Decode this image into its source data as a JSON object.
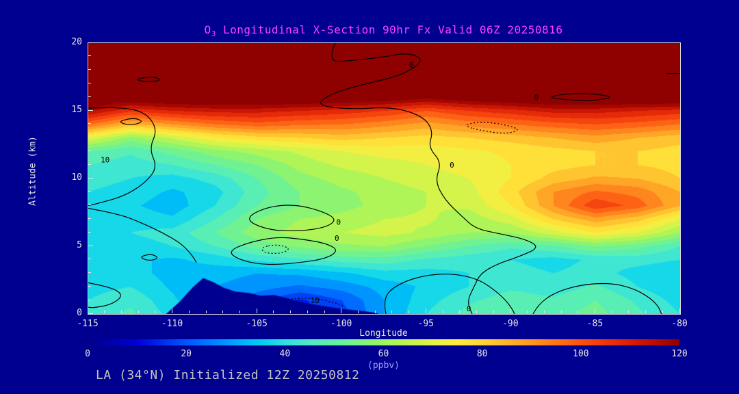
{
  "title": {
    "prefix": "O",
    "sub": "3",
    "rest": " Longitudinal X-Section 90hr  Fx Valid 06Z 20250816"
  },
  "axes": {
    "xlabel": "Longitude",
    "ylabel": "Altitude (km)",
    "x_ticks": [
      -115,
      -110,
      -105,
      -100,
      -95,
      -90,
      -85,
      -80
    ],
    "y_ticks": [
      0,
      5,
      10,
      15,
      20
    ],
    "x_range": [
      -115,
      -80
    ],
    "y_range": [
      0,
      20
    ]
  },
  "colorbar": {
    "label": "(ppbv)",
    "ticks": [
      0,
      20,
      40,
      60,
      80,
      100,
      120
    ],
    "min": 0,
    "max": 120
  },
  "footer": {
    "text": "LA (34°N) Initialized 12Z 20250812"
  },
  "colors": {
    "background": "#000090",
    "title": "#FF3FFF",
    "axis_text": "#E6E6E6",
    "footer_text": "#C4C4C4",
    "colorbar_label": "#9F9FFF",
    "contour": "#000000"
  },
  "chart_data": {
    "type": "heatmap",
    "units": "ppbv",
    "title": "O3 Longitudinal X-Section 90hr Fx Valid 06Z 20250816",
    "xlabel": "Longitude",
    "ylabel": "Altitude (km)",
    "x": [
      -115,
      -112.5,
      -110,
      -107.5,
      -105,
      -102.5,
      -100,
      -97.5,
      -95,
      -92.5,
      -90,
      -87.5,
      -85,
      -82.5,
      -80
    ],
    "y": [
      0,
      1,
      2,
      3,
      4,
      5,
      6,
      7,
      8,
      9,
      10,
      11,
      12,
      13,
      14,
      15,
      16,
      17,
      18,
      19,
      20
    ],
    "band_step": 5,
    "values": [
      [
        42,
        46,
        38,
        30,
        25,
        12,
        18,
        30,
        40,
        47,
        50,
        48,
        52,
        46,
        40
      ],
      [
        40,
        44,
        36,
        28,
        22,
        14,
        20,
        30,
        38,
        44,
        48,
        46,
        50,
        44,
        38
      ],
      [
        38,
        40,
        34,
        30,
        27,
        24,
        27,
        32,
        36,
        40,
        44,
        42,
        46,
        40,
        36
      ],
      [
        36,
        37,
        33,
        32,
        30,
        31,
        34,
        38,
        38,
        40,
        42,
        40,
        42,
        38,
        35
      ],
      [
        35,
        36,
        34,
        37,
        41,
        44,
        47,
        48,
        44,
        42,
        40,
        38,
        41,
        42,
        40
      ],
      [
        36,
        38,
        40,
        45,
        52,
        56,
        59,
        60,
        55,
        50,
        46,
        49,
        55,
        52,
        45
      ],
      [
        38,
        40,
        42,
        50,
        58,
        62,
        65,
        67,
        64,
        60,
        60,
        68,
        75,
        70,
        60
      ],
      [
        36,
        38,
        36,
        45,
        55,
        60,
        62,
        65,
        66,
        62,
        68,
        80,
        88,
        82,
        70
      ],
      [
        38,
        36,
        32,
        40,
        50,
        55,
        58,
        62,
        65,
        66,
        75,
        90,
        104,
        98,
        85
      ],
      [
        40,
        38,
        34,
        38,
        48,
        55,
        59,
        62,
        65,
        68,
        78,
        90,
        96,
        93,
        85
      ],
      [
        42,
        40,
        38,
        42,
        50,
        58,
        62,
        65,
        68,
        70,
        75,
        82,
        86,
        85,
        80
      ],
      [
        45,
        42,
        45,
        50,
        55,
        62,
        66,
        68,
        70,
        72,
        75,
        78,
        80,
        80,
        78
      ],
      [
        50,
        46,
        52,
        58,
        62,
        66,
        70,
        72,
        72,
        74,
        76,
        78,
        80,
        80,
        78
      ],
      [
        70,
        58,
        66,
        74,
        78,
        80,
        82,
        80,
        78,
        80,
        82,
        85,
        88,
        85,
        82
      ],
      [
        96,
        84,
        90,
        95,
        98,
        96,
        95,
        92,
        88,
        92,
        95,
        98,
        100,
        98,
        95
      ],
      [
        116,
        106,
        110,
        112,
        112,
        110,
        108,
        105,
        100,
        105,
        108,
        112,
        112,
        110,
        108
      ],
      [
        132,
        128,
        130,
        130,
        130,
        130,
        128,
        126,
        122,
        126,
        128,
        130,
        130,
        130,
        130
      ],
      [
        135,
        135,
        135,
        135,
        135,
        135,
        135,
        135,
        132,
        134,
        135,
        135,
        135,
        135,
        135
      ],
      [
        138,
        138,
        138,
        138,
        138,
        138,
        138,
        138,
        138,
        138,
        138,
        138,
        138,
        138,
        138
      ],
      [
        138,
        138,
        138,
        138,
        138,
        138,
        138,
        138,
        138,
        138,
        138,
        138,
        138,
        138,
        138
      ],
      [
        140,
        140,
        140,
        140,
        140,
        140,
        140,
        140,
        140,
        140,
        140,
        140,
        140,
        140,
        140
      ]
    ],
    "colormap": {
      "min": 0,
      "max": 120,
      "stops": [
        [
          0,
          "#000088"
        ],
        [
          10,
          "#0000D8"
        ],
        [
          20,
          "#0057FF"
        ],
        [
          30,
          "#00A8FF"
        ],
        [
          35,
          "#00CFEF"
        ],
        [
          40,
          "#2EE0E0"
        ],
        [
          45,
          "#4FEBC4"
        ],
        [
          50,
          "#63F0A4"
        ],
        [
          55,
          "#7CF382"
        ],
        [
          60,
          "#9CF55F"
        ],
        [
          65,
          "#C2F44F"
        ],
        [
          70,
          "#E6F146"
        ],
        [
          75,
          "#FFEC3D"
        ],
        [
          80,
          "#FFD435"
        ],
        [
          85,
          "#FFB52B"
        ],
        [
          90,
          "#FF9622"
        ],
        [
          95,
          "#FF7419"
        ],
        [
          100,
          "#FC5210"
        ],
        [
          105,
          "#F0350B"
        ],
        [
          110,
          "#D81F06"
        ],
        [
          115,
          "#B80D02"
        ],
        [
          120,
          "#8F0000"
        ]
      ]
    },
    "terrain": {
      "points": [
        [
          -110.4,
          0
        ],
        [
          -109.6,
          0.9
        ],
        [
          -108.8,
          2.0
        ],
        [
          -108.2,
          2.65
        ],
        [
          -107.6,
          2.35
        ],
        [
          -107.0,
          1.95
        ],
        [
          -106.3,
          1.65
        ],
        [
          -105.5,
          1.55
        ],
        [
          -104.8,
          1.35
        ],
        [
          -104.0,
          1.4
        ],
        [
          -103.2,
          1.15
        ],
        [
          -102.3,
          0.85
        ],
        [
          -101.2,
          0.6
        ],
        [
          -100.2,
          0.42
        ],
        [
          -99.2,
          0.28
        ],
        [
          -98.2,
          0.12
        ],
        [
          -97.8,
          0
        ]
      ]
    },
    "overlays": [
      {
        "style": "solid",
        "closed": false,
        "points": [
          [
            -100.4,
            20
          ],
          [
            -100.9,
            18.6
          ],
          [
            -99.4,
            18.7
          ],
          [
            -97.4,
            19.0
          ],
          [
            -96.0,
            19.3
          ],
          [
            -95.1,
            18.7
          ],
          [
            -96.5,
            17.6
          ],
          [
            -98.6,
            17.0
          ],
          [
            -100.6,
            16.3
          ],
          [
            -101.6,
            15.4
          ],
          [
            -99.4,
            15.1
          ],
          [
            -97.0,
            15.3
          ],
          [
            -95.2,
            14.6
          ],
          [
            -94.6,
            13.5
          ],
          [
            -94.9,
            12.3
          ],
          [
            -94.1,
            11.2
          ],
          [
            -94.5,
            9.8
          ],
          [
            -93.9,
            8.4
          ],
          [
            -92.9,
            7.2
          ],
          [
            -92.1,
            6.3
          ],
          [
            -90.6,
            5.9
          ],
          [
            -89.1,
            5.5
          ],
          [
            -88.3,
            4.9
          ],
          [
            -89.6,
            4.2
          ],
          [
            -90.8,
            3.7
          ],
          [
            -91.8,
            3.0
          ],
          [
            -92.2,
            2.0
          ],
          [
            -92.6,
            0.9
          ],
          [
            -92.3,
            0
          ]
        ],
        "labels": [
          {
            "text": "0",
            "pos": [
              -95.9,
              18.4
            ]
          },
          {
            "text": "0",
            "pos": [
              -93.5,
              11.0
            ]
          }
        ]
      },
      {
        "style": "solid",
        "closed": false,
        "points": [
          [
            -115,
            15.2
          ],
          [
            -113.2,
            15.3
          ],
          [
            -111.6,
            14.9
          ],
          [
            -110.9,
            13.6
          ],
          [
            -111.4,
            12.2
          ],
          [
            -110.9,
            10.8
          ],
          [
            -111.7,
            9.6
          ],
          [
            -112.9,
            8.7
          ],
          [
            -114.3,
            8.2
          ],
          [
            -115,
            8.0
          ]
        ],
        "labels": [
          {
            "text": "10",
            "pos": [
              -114.0,
              11.4
            ]
          }
        ]
      },
      {
        "style": "solid",
        "closed": true,
        "points": [
          [
            -113.3,
            14.2
          ],
          [
            -112.3,
            14.5
          ],
          [
            -111.7,
            14.2
          ],
          [
            -112.5,
            13.9
          ]
        ],
        "labels": []
      },
      {
        "style": "solid",
        "closed": false,
        "points": [
          [
            -115,
            7.8
          ],
          [
            -113.2,
            7.4
          ],
          [
            -111.8,
            6.7
          ],
          [
            -110.6,
            6.0
          ],
          [
            -109.5,
            5.2
          ],
          [
            -108.9,
            4.4
          ],
          [
            -108.6,
            3.8
          ]
        ],
        "labels": []
      },
      {
        "style": "solid",
        "closed": true,
        "points": [
          [
            -105.8,
            7.0
          ],
          [
            -104.5,
            7.9
          ],
          [
            -102.8,
            8.1
          ],
          [
            -101.2,
            7.6
          ],
          [
            -100.3,
            7.0
          ],
          [
            -100.9,
            6.4
          ],
          [
            -102.6,
            6.1
          ],
          [
            -104.4,
            6.2
          ]
        ],
        "labels": [
          {
            "text": "0",
            "pos": [
              -100.2,
              6.8
            ]
          }
        ]
      },
      {
        "style": "solid",
        "closed": true,
        "points": [
          [
            -106.8,
            4.6
          ],
          [
            -105.5,
            5.3
          ],
          [
            -103.8,
            5.7
          ],
          [
            -102.2,
            5.5
          ],
          [
            -100.9,
            5.2
          ],
          [
            -100.2,
            4.7
          ],
          [
            -100.9,
            4.1
          ],
          [
            -102.4,
            3.8
          ],
          [
            -104.3,
            3.6
          ],
          [
            -105.9,
            3.9
          ]
        ],
        "labels": [
          {
            "text": "0",
            "pos": [
              -100.3,
              5.6
            ]
          }
        ]
      },
      {
        "style": "dotted",
        "closed": true,
        "points": [
          [
            -104.8,
            4.9
          ],
          [
            -103.9,
            5.15
          ],
          [
            -103.0,
            4.85
          ],
          [
            -103.6,
            4.45
          ],
          [
            -104.6,
            4.5
          ]
        ],
        "labels": []
      },
      {
        "style": "dotted",
        "closed": false,
        "points": [
          [
            -103.4,
            1.05
          ],
          [
            -102.3,
            1.2
          ],
          [
            -101.3,
            1.1
          ],
          [
            -100.5,
            0.85
          ],
          [
            -99.9,
            0.6
          ]
        ],
        "labels": [
          {
            "text": "10",
            "pos": [
              -101.6,
              1.0
            ]
          }
        ]
      },
      {
        "style": "solid",
        "closed": false,
        "points": [
          [
            -97.4,
            0
          ],
          [
            -97.6,
            1.2
          ],
          [
            -96.7,
            2.2
          ],
          [
            -95.2,
            2.85
          ],
          [
            -93.5,
            3.0
          ],
          [
            -92.0,
            2.6
          ],
          [
            -91.0,
            1.8
          ],
          [
            -90.3,
            1.0
          ],
          [
            -89.9,
            0.3
          ],
          [
            -89.8,
            0
          ]
        ],
        "labels": [
          {
            "text": "0",
            "pos": [
              -92.5,
              0.4
            ]
          }
        ]
      },
      {
        "style": "solid",
        "closed": false,
        "points": [
          [
            -88.7,
            0
          ],
          [
            -88.4,
            0.7
          ],
          [
            -87.4,
            1.6
          ],
          [
            -85.9,
            2.15
          ],
          [
            -84.2,
            2.3
          ],
          [
            -82.9,
            1.95
          ],
          [
            -81.9,
            1.3
          ],
          [
            -81.3,
            0.6
          ],
          [
            -81.1,
            0
          ]
        ],
        "labels": []
      },
      {
        "style": "dotted",
        "closed": true,
        "points": [
          [
            -92.9,
            13.9
          ],
          [
            -91.6,
            13.5
          ],
          [
            -90.3,
            13.3
          ],
          [
            -89.4,
            13.6
          ],
          [
            -90.4,
            14.0
          ],
          [
            -91.9,
            14.2
          ]
        ],
        "labels": []
      },
      {
        "style": "solid",
        "closed": true,
        "points": [
          [
            -87.9,
            16.0
          ],
          [
            -86.5,
            16.3
          ],
          [
            -85.0,
            16.25
          ],
          [
            -83.9,
            16.0
          ],
          [
            -85.1,
            15.75
          ],
          [
            -86.7,
            15.8
          ]
        ],
        "labels": [
          {
            "text": "0",
            "pos": [
              -88.5,
              16.0
            ]
          }
        ]
      },
      {
        "style": "solid",
        "closed": true,
        "points": [
          [
            -112.3,
            17.3
          ],
          [
            -111.3,
            17.55
          ],
          [
            -110.6,
            17.3
          ],
          [
            -111.4,
            17.1
          ]
        ],
        "labels": []
      },
      {
        "style": "solid",
        "closed": false,
        "points": [
          [
            -115,
            2.3
          ],
          [
            -113.7,
            2.0
          ],
          [
            -112.9,
            1.4
          ],
          [
            -113.6,
            0.7
          ],
          [
            -114.7,
            0.45
          ],
          [
            -115,
            0.5
          ]
        ],
        "labels": []
      },
      {
        "style": "solid",
        "closed": true,
        "points": [
          [
            -112.0,
            4.2
          ],
          [
            -111.3,
            4.45
          ],
          [
            -110.8,
            4.15
          ],
          [
            -111.4,
            3.9
          ]
        ],
        "labels": []
      },
      {
        "style": "solid",
        "closed": false,
        "points": [
          [
            -80.8,
            17.75
          ],
          [
            -80.05,
            17.75
          ]
        ],
        "labels": []
      }
    ]
  }
}
